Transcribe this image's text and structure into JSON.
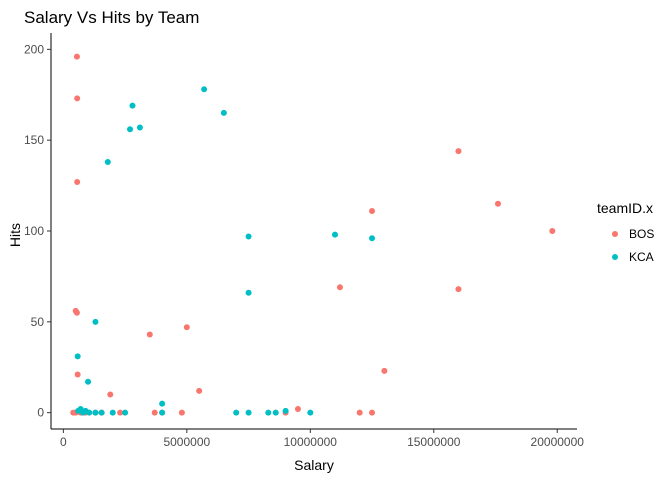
{
  "chart_data": {
    "type": "scatter",
    "title": "Salary Vs Hits by Team",
    "xlabel": "Salary",
    "ylabel": "Hits",
    "xlim": [
      -500000,
      20800000
    ],
    "ylim": [
      -9,
      209
    ],
    "x_ticks": [
      0,
      5000000,
      10000000,
      15000000,
      20000000
    ],
    "x_tick_labels": [
      "0",
      "5000000",
      "10000000",
      "15000000",
      "20000000"
    ],
    "y_ticks": [
      0,
      50,
      100,
      150,
      200
    ],
    "y_tick_labels": [
      "0",
      "50",
      "100",
      "150",
      "200"
    ],
    "grid": false,
    "legend": {
      "title": "teamID.x",
      "placement": "right"
    },
    "series": [
      {
        "name": "BOS",
        "color": "#F8766D",
        "points": [
          [
            550000,
            196
          ],
          [
            560000,
            173
          ],
          [
            560000,
            127
          ],
          [
            500000,
            56
          ],
          [
            550000,
            55
          ],
          [
            580000,
            21
          ],
          [
            400000,
            0
          ],
          [
            500000,
            0
          ],
          [
            700000,
            0
          ],
          [
            900000,
            0
          ],
          [
            1300000,
            0
          ],
          [
            1550000,
            0
          ],
          [
            1900000,
            10
          ],
          [
            2300000,
            0
          ],
          [
            3500000,
            43
          ],
          [
            3700000,
            0
          ],
          [
            4000000,
            0
          ],
          [
            4800000,
            0
          ],
          [
            5000000,
            47
          ],
          [
            5500000,
            12
          ],
          [
            9000000,
            0
          ],
          [
            9500000,
            2
          ],
          [
            11200000,
            69
          ],
          [
            12000000,
            0
          ],
          [
            12500000,
            111
          ],
          [
            12500000,
            0
          ],
          [
            13000000,
            23
          ],
          [
            16000000,
            144
          ],
          [
            16000000,
            68
          ],
          [
            17600000,
            115
          ],
          [
            19800000,
            100
          ]
        ]
      },
      {
        "name": "KCA",
        "color": "#00BFC4",
        "points": [
          [
            5700000,
            178
          ],
          [
            2800000,
            169
          ],
          [
            6500000,
            165
          ],
          [
            3100000,
            157
          ],
          [
            2700000,
            156
          ],
          [
            1800000,
            138
          ],
          [
            7500000,
            97
          ],
          [
            11000000,
            98
          ],
          [
            12500000,
            96
          ],
          [
            7500000,
            66
          ],
          [
            1300000,
            50
          ],
          [
            580000,
            31
          ],
          [
            1000000,
            17
          ],
          [
            4000000,
            5
          ],
          [
            600000,
            1
          ],
          [
            700000,
            2
          ],
          [
            800000,
            0
          ],
          [
            900000,
            1
          ],
          [
            1050000,
            0
          ],
          [
            1300000,
            0
          ],
          [
            1550000,
            0
          ],
          [
            2000000,
            0
          ],
          [
            2500000,
            0
          ],
          [
            4000000,
            0
          ],
          [
            7000000,
            0
          ],
          [
            7500000,
            0
          ],
          [
            8300000,
            0
          ],
          [
            8600000,
            0
          ],
          [
            9000000,
            1
          ],
          [
            10000000,
            0
          ]
        ]
      }
    ]
  }
}
